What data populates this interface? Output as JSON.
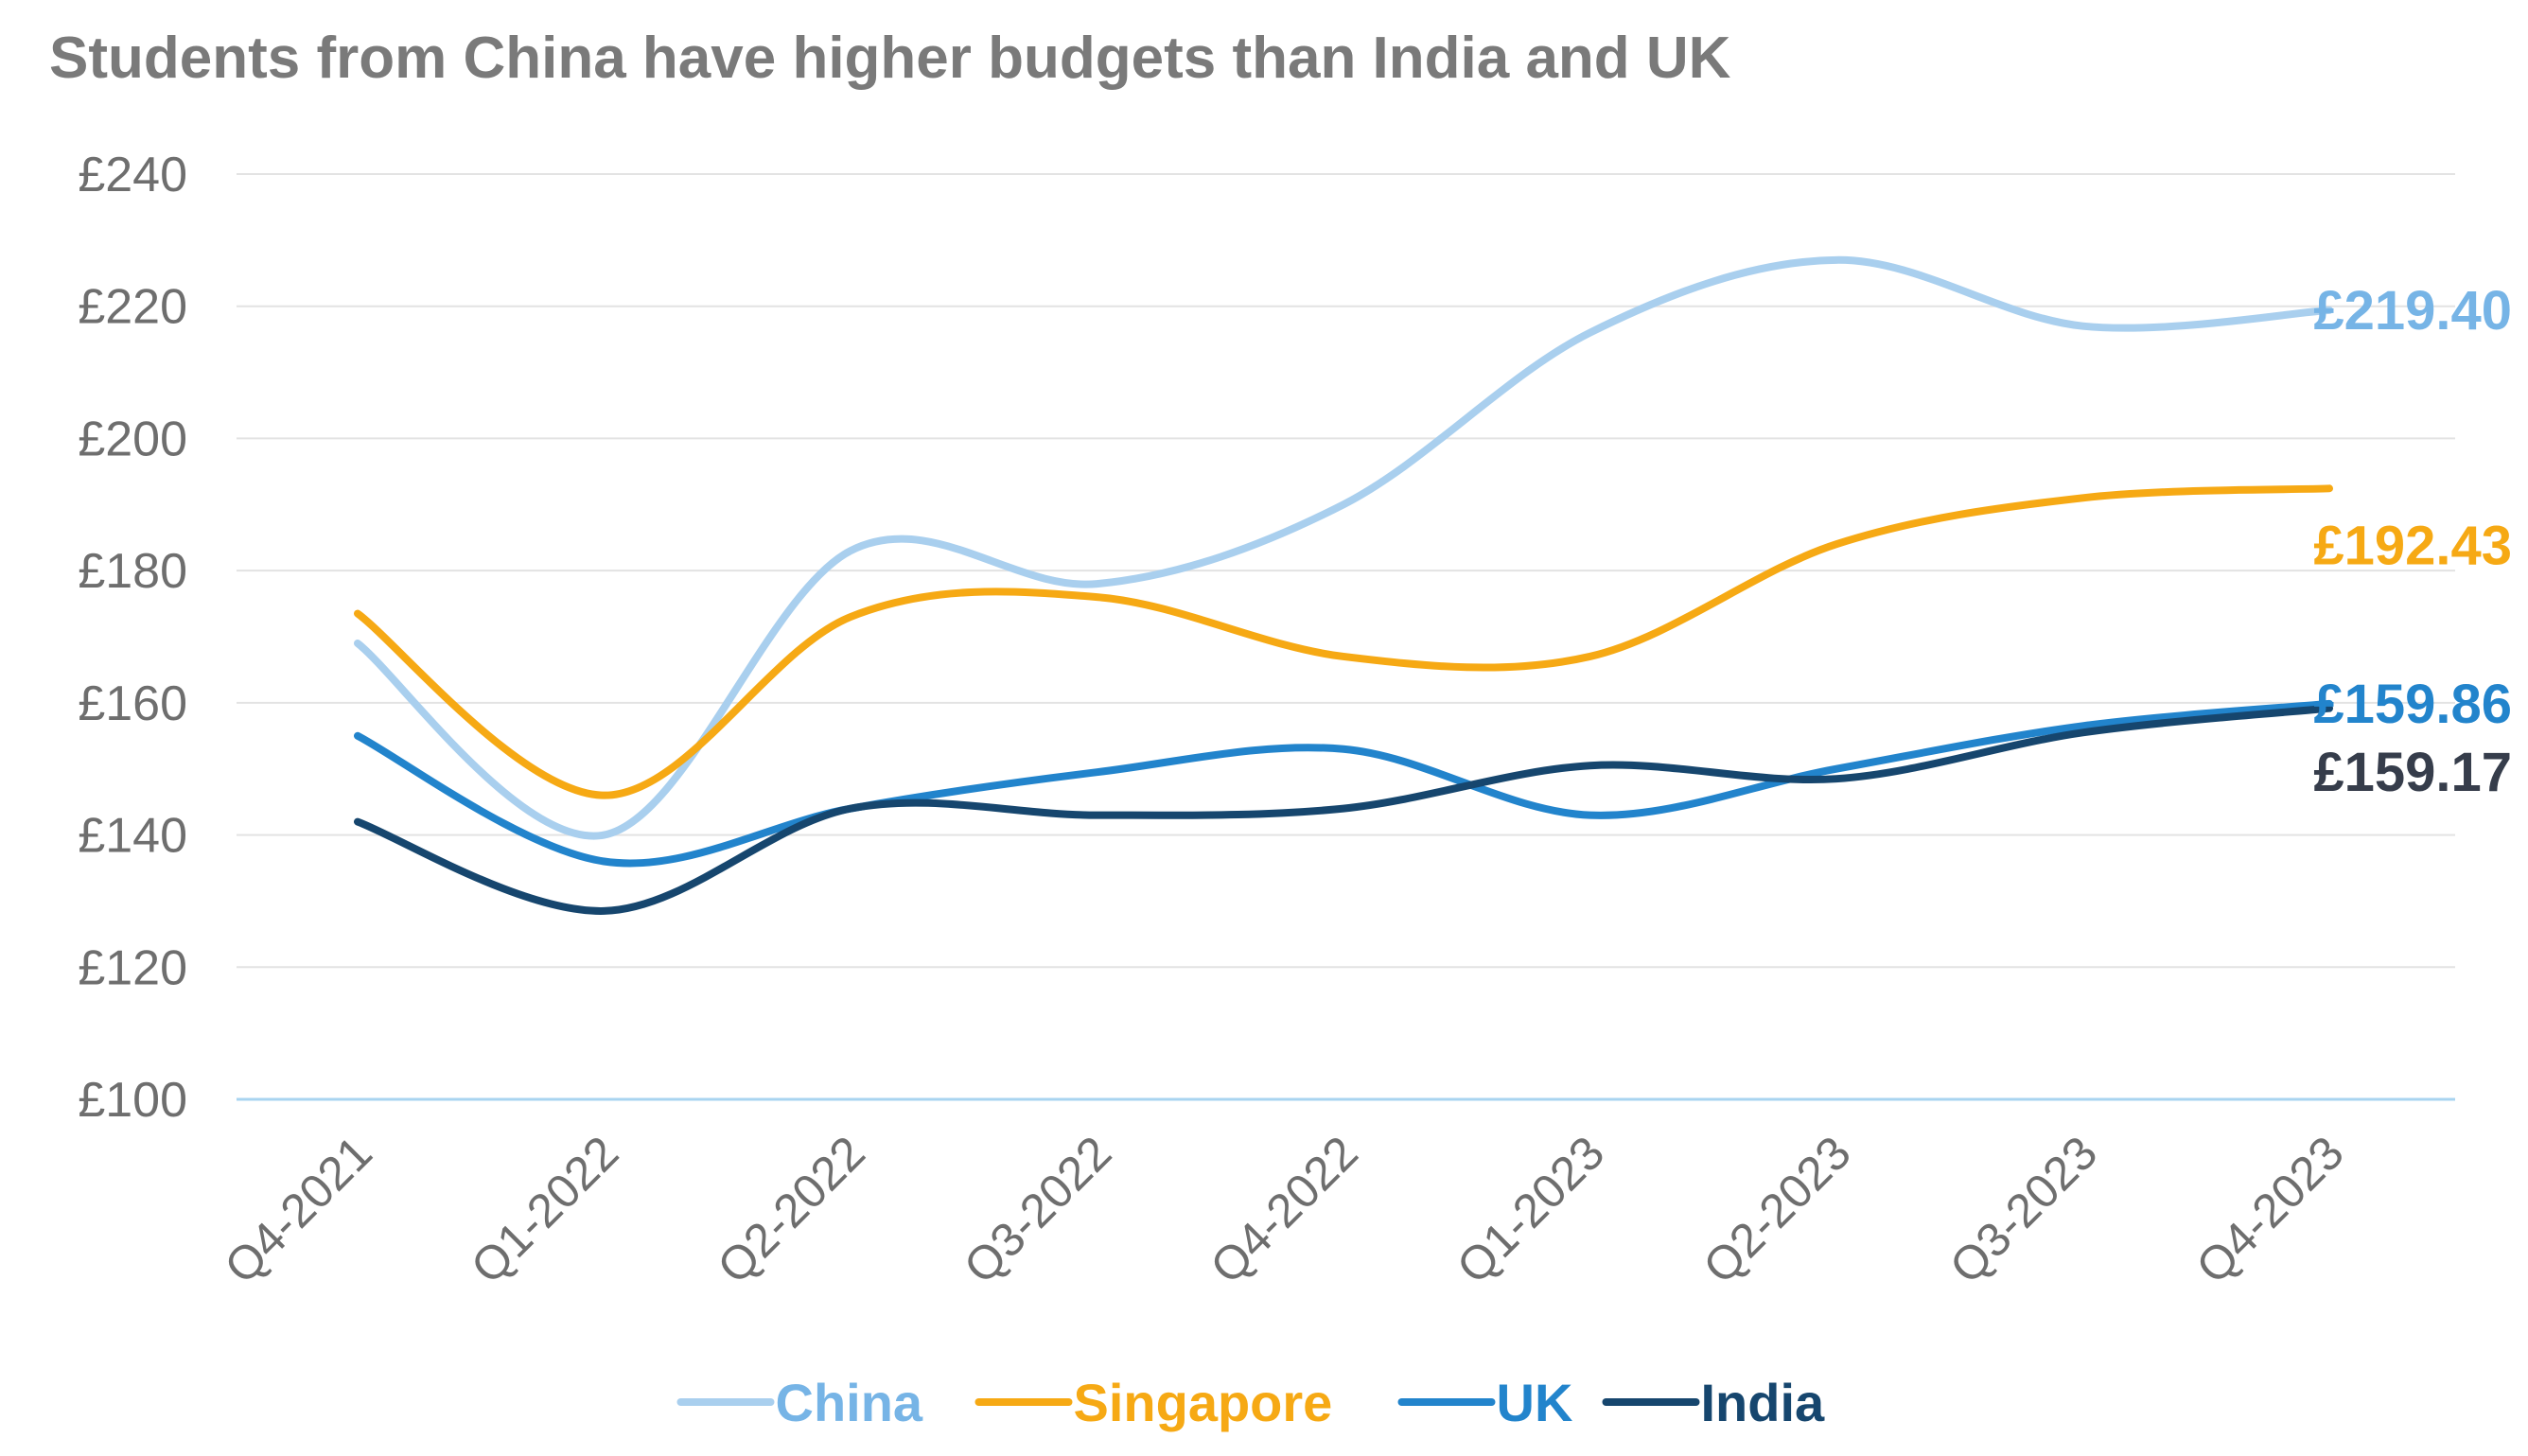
{
  "chart_data": {
    "type": "line",
    "title": "Students from China have higher budgets than India and UK",
    "xlabel": "",
    "ylabel": "",
    "categories": [
      "Q4-2021",
      "Q1-2022",
      "Q2-2022",
      "Q3-2022",
      "Q4-2022",
      "Q1-2023",
      "Q2-2023",
      "Q3-2023",
      "Q4-2023"
    ],
    "ylim": [
      100,
      240
    ],
    "yticks": [
      100,
      120,
      140,
      160,
      180,
      200,
      220,
      240
    ],
    "ytick_labels": [
      "£100",
      "£120",
      "£140",
      "£160",
      "£180",
      "£200",
      "£220",
      "£240"
    ],
    "grid": true,
    "smooth": true,
    "legend_position": "bottom",
    "series": [
      {
        "name": "China",
        "color": "#a9cfee",
        "label_color": "#76b4e6",
        "values": [
          169,
          140,
          183,
          178,
          190,
          216,
          227,
          217,
          219.4
        ],
        "end_label": "£219.40"
      },
      {
        "name": "Singapore",
        "color": "#f6a914",
        "label_color": "#f6a914",
        "values": [
          173.5,
          146,
          173,
          176,
          167,
          167,
          184,
          191,
          192.43
        ],
        "end_label": "£192.43"
      },
      {
        "name": "UK",
        "color": "#2284cc",
        "label_color": "#2284cc",
        "values": [
          155,
          136,
          144,
          149.5,
          153,
          143,
          150,
          156.5,
          159.86
        ],
        "end_label": "£159.86"
      },
      {
        "name": "India",
        "color": "#16466e",
        "label_color": "#363d4b",
        "values": [
          142,
          128.5,
          144,
          143,
          144,
          150.5,
          148.5,
          155.5,
          159.17
        ],
        "end_label": "£159.17"
      }
    ]
  }
}
